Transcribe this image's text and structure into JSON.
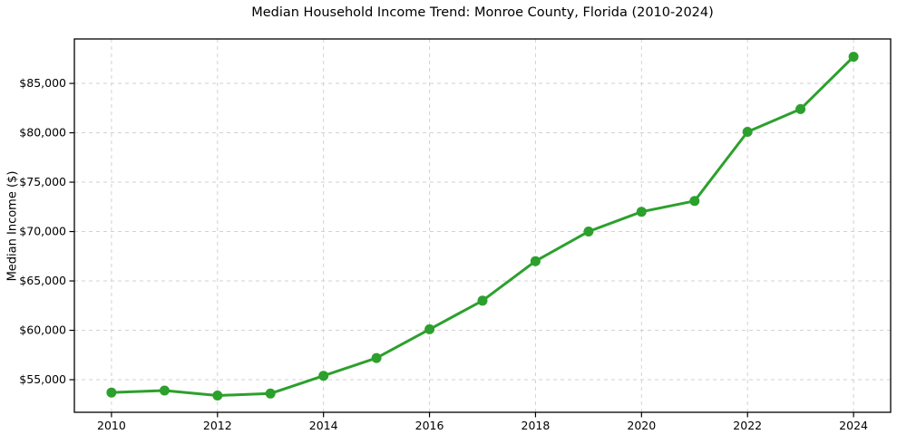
{
  "chart_data": {
    "type": "line",
    "title": "Median Household Income Trend: Monroe County, Florida (2010-2024)",
    "xlabel": "",
    "ylabel": "Median Income ($)",
    "x": [
      2010,
      2011,
      2012,
      2013,
      2014,
      2015,
      2016,
      2017,
      2018,
      2019,
      2020,
      2021,
      2022,
      2023,
      2024
    ],
    "series": [
      {
        "name": "Median Household Income",
        "values": [
          53700,
          53900,
          53400,
          53600,
          55400,
          57200,
          60100,
          63000,
          67000,
          70000,
          72000,
          73100,
          80100,
          82400,
          87700
        ]
      }
    ],
    "xlim": [
      2009.3,
      2024.7
    ],
    "ylim": [
      51700,
      89500
    ],
    "xticks": {
      "values": [
        2010,
        2012,
        2014,
        2016,
        2018,
        2020,
        2022,
        2024
      ],
      "labels": [
        "2010",
        "2012",
        "2014",
        "2016",
        "2018",
        "2020",
        "2022",
        "2024"
      ]
    },
    "yticks": {
      "values": [
        55000,
        60000,
        65000,
        70000,
        75000,
        80000,
        85000
      ],
      "labels": [
        "$55,000",
        "$60,000",
        "$65,000",
        "$70,000",
        "$75,000",
        "$80,000",
        "$85,000"
      ]
    },
    "grid": {
      "visible": true,
      "style": "dashed",
      "color": "#cbcbcb"
    },
    "legend": {
      "visible": false,
      "position": "none"
    },
    "colors": {
      "line": "#2ca02c",
      "marker": "#2ca02c",
      "spine": "#000000",
      "background": "#ffffff",
      "text": "#000000"
    },
    "marker_shape": "circle"
  }
}
